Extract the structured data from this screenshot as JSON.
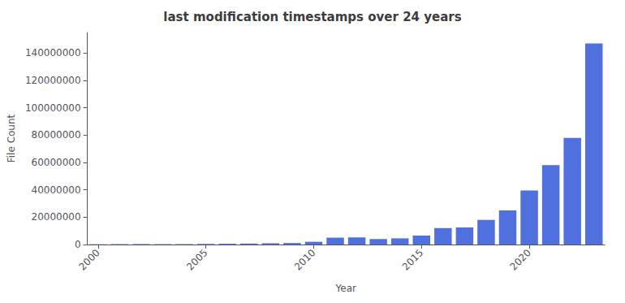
{
  "chart_data": {
    "type": "bar",
    "title": "last modification timestamps over 24 years",
    "xlabel": "Year",
    "ylabel": "File Count",
    "x": [
      2000,
      2001,
      2002,
      2003,
      2004,
      2005,
      2006,
      2007,
      2008,
      2009,
      2010,
      2011,
      2012,
      2013,
      2014,
      2015,
      2016,
      2017,
      2018,
      2019,
      2020,
      2021,
      2022,
      2023
    ],
    "values": [
      200000,
      300000,
      350000,
      280000,
      320000,
      400000,
      550000,
      700000,
      900000,
      1100000,
      2000000,
      5000000,
      5200000,
      4000000,
      4500000,
      6500000,
      12000000,
      12500000,
      18000000,
      25000000,
      39500000,
      58000000,
      78000000,
      147000000
    ],
    "xlim": [
      1999.5,
      2023.5
    ],
    "xticks": [
      2000,
      2005,
      2010,
      2015,
      2020
    ],
    "ylim": [
      0,
      155000000
    ],
    "yticks": [
      0,
      20000000,
      40000000,
      60000000,
      80000000,
      100000000,
      120000000,
      140000000
    ],
    "grid": false
  }
}
